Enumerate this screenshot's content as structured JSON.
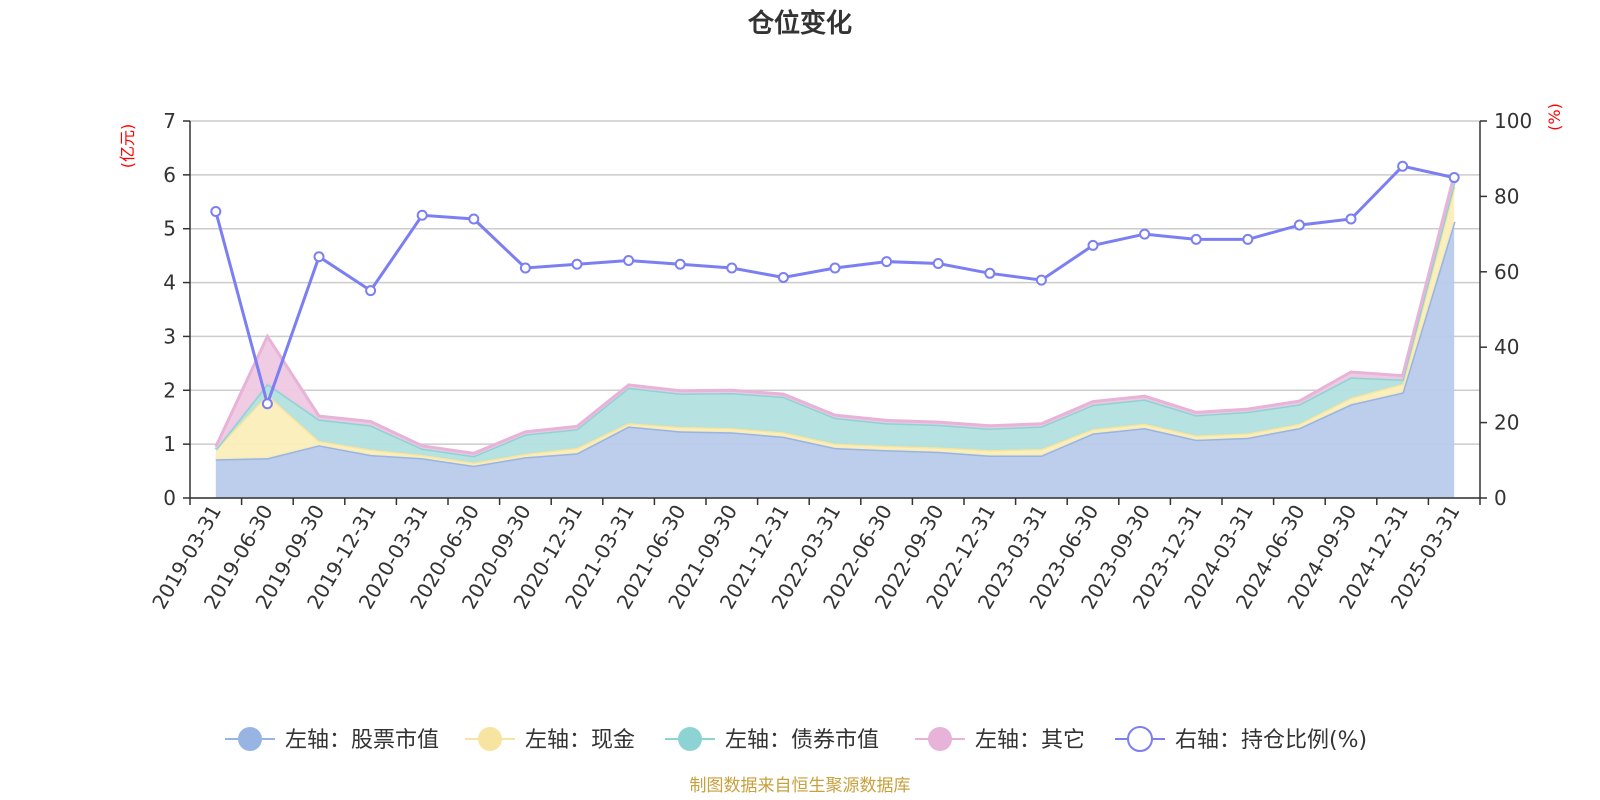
{
  "chart_data": {
    "type": "area",
    "title": "仓位变化",
    "left_unit": "(亿元)",
    "right_unit": "(%)",
    "left_ylim": [
      0,
      7
    ],
    "left_ticks": [
      "0",
      "1",
      "2",
      "3",
      "4",
      "5",
      "6",
      "7"
    ],
    "right_ylim": [
      0,
      100
    ],
    "right_ticks": [
      "0",
      "20",
      "40",
      "60",
      "80",
      "100"
    ],
    "categories": [
      "2019-03-31",
      "2019-06-30",
      "2019-09-30",
      "2019-12-31",
      "2020-03-31",
      "2020-06-30",
      "2020-09-30",
      "2020-12-31",
      "2021-03-31",
      "2021-06-30",
      "2021-09-30",
      "2021-12-31",
      "2022-03-31",
      "2022-06-30",
      "2022-09-30",
      "2022-12-31",
      "2023-03-31",
      "2023-06-30",
      "2023-09-30",
      "2023-12-31",
      "2024-03-31",
      "2024-06-30",
      "2024-09-30",
      "2024-12-31",
      "2025-03-31"
    ],
    "series": [
      {
        "name": "左轴：股票市值",
        "axis": "left",
        "stack": true,
        "color": "#98b4e2",
        "fill": "#b8cbeb",
        "values": [
          0.72,
          0.74,
          0.98,
          0.8,
          0.74,
          0.6,
          0.76,
          0.83,
          1.33,
          1.24,
          1.22,
          1.14,
          0.93,
          0.89,
          0.86,
          0.79,
          0.79,
          1.2,
          1.3,
          1.08,
          1.12,
          1.3,
          1.74,
          1.96,
          5.13
        ]
      },
      {
        "name": "左轴：现金",
        "axis": "left",
        "stack": true,
        "color": "#f7e4a0",
        "fill": "#fbeeb9",
        "values": [
          0.18,
          1.18,
          0.08,
          0.1,
          0.06,
          0.06,
          0.06,
          0.1,
          0.06,
          0.08,
          0.08,
          0.08,
          0.08,
          0.08,
          0.08,
          0.1,
          0.12,
          0.08,
          0.08,
          0.08,
          0.08,
          0.08,
          0.12,
          0.16,
          0.65
        ]
      },
      {
        "name": "左轴：债券市值",
        "axis": "left",
        "stack": true,
        "color": "#8ed3d3",
        "fill": "#b2e0df",
        "values": [
          0.0,
          0.2,
          0.4,
          0.45,
          0.12,
          0.12,
          0.36,
          0.35,
          0.66,
          0.62,
          0.65,
          0.66,
          0.48,
          0.42,
          0.42,
          0.4,
          0.42,
          0.45,
          0.45,
          0.38,
          0.4,
          0.36,
          0.38,
          0.08,
          0.08
        ]
      },
      {
        "name": "左轴：其它",
        "axis": "left",
        "stack": true,
        "color": "#e8b3d8",
        "fill": "#efc8e3",
        "values": [
          0.05,
          0.88,
          0.06,
          0.07,
          0.05,
          0.05,
          0.05,
          0.05,
          0.05,
          0.05,
          0.05,
          0.05,
          0.05,
          0.05,
          0.05,
          0.05,
          0.05,
          0.06,
          0.06,
          0.05,
          0.05,
          0.06,
          0.1,
          0.07,
          0.14
        ]
      },
      {
        "name": "右轴：持仓比例(%)",
        "axis": "right",
        "stack": false,
        "color": "#7b7ff2",
        "values": [
          76.0,
          25.0,
          64.0,
          55.0,
          75.0,
          74.0,
          61.0,
          62.0,
          63.0,
          62.0,
          61.0,
          58.5,
          61.0,
          62.7,
          62.2,
          59.6,
          57.8,
          67.0,
          70.0,
          68.6,
          68.6,
          72.4,
          74.0,
          88.0,
          85.0
        ]
      }
    ],
    "source_note": "制图数据来自恒生聚源数据库"
  }
}
